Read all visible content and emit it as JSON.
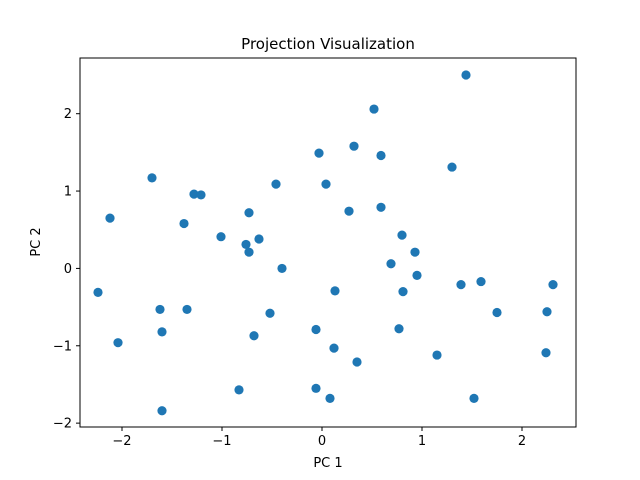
{
  "chart_data": {
    "type": "scatter",
    "title": "Projection Visualization",
    "xlabel": "PC 1",
    "ylabel": "PC 2",
    "xlim": [
      -2.42,
      2.54
    ],
    "ylim": [
      -2.05,
      2.72
    ],
    "xticks": [
      -2,
      -1,
      0,
      1,
      2
    ],
    "yticks": [
      -2,
      -1,
      0,
      1,
      2
    ],
    "grid": false,
    "point_color": "#1f77b4",
    "points": [
      {
        "x": 1.44,
        "y": 2.5
      },
      {
        "x": 0.52,
        "y": 2.06
      },
      {
        "x": 0.32,
        "y": 1.58
      },
      {
        "x": -0.03,
        "y": 1.49
      },
      {
        "x": 0.59,
        "y": 1.46
      },
      {
        "x": 1.3,
        "y": 1.31
      },
      {
        "x": -1.7,
        "y": 1.17
      },
      {
        "x": -0.46,
        "y": 1.09
      },
      {
        "x": 0.04,
        "y": 1.09
      },
      {
        "x": -1.28,
        "y": 0.96
      },
      {
        "x": -1.21,
        "y": 0.95
      },
      {
        "x": 0.59,
        "y": 0.79
      },
      {
        "x": 0.27,
        "y": 0.74
      },
      {
        "x": -0.73,
        "y": 0.72
      },
      {
        "x": -2.12,
        "y": 0.65
      },
      {
        "x": -1.38,
        "y": 0.58
      },
      {
        "x": 0.8,
        "y": 0.43
      },
      {
        "x": -1.01,
        "y": 0.41
      },
      {
        "x": -0.63,
        "y": 0.38
      },
      {
        "x": -0.76,
        "y": 0.31
      },
      {
        "x": -0.73,
        "y": 0.21
      },
      {
        "x": 0.93,
        "y": 0.21
      },
      {
        "x": 0.69,
        "y": 0.06
      },
      {
        "x": -0.4,
        "y": 0.0
      },
      {
        "x": 0.95,
        "y": -0.09
      },
      {
        "x": 1.59,
        "y": -0.17
      },
      {
        "x": 1.39,
        "y": -0.21
      },
      {
        "x": 2.31,
        "y": -0.21
      },
      {
        "x": 0.13,
        "y": -0.29
      },
      {
        "x": 0.81,
        "y": -0.3
      },
      {
        "x": -2.24,
        "y": -0.31
      },
      {
        "x": -1.62,
        "y": -0.53
      },
      {
        "x": -1.35,
        "y": -0.53
      },
      {
        "x": 2.25,
        "y": -0.56
      },
      {
        "x": 1.75,
        "y": -0.57
      },
      {
        "x": -0.52,
        "y": -0.58
      },
      {
        "x": 0.77,
        "y": -0.78
      },
      {
        "x": -0.06,
        "y": -0.79
      },
      {
        "x": -1.6,
        "y": -0.82
      },
      {
        "x": -0.68,
        "y": -0.87
      },
      {
        "x": -2.04,
        "y": -0.96
      },
      {
        "x": 0.12,
        "y": -1.03
      },
      {
        "x": 2.24,
        "y": -1.09
      },
      {
        "x": 1.15,
        "y": -1.12
      },
      {
        "x": 0.35,
        "y": -1.21
      },
      {
        "x": -0.06,
        "y": -1.55
      },
      {
        "x": -0.83,
        "y": -1.57
      },
      {
        "x": 0.08,
        "y": -1.68
      },
      {
        "x": 1.52,
        "y": -1.68
      },
      {
        "x": -1.6,
        "y": -1.84
      }
    ]
  }
}
